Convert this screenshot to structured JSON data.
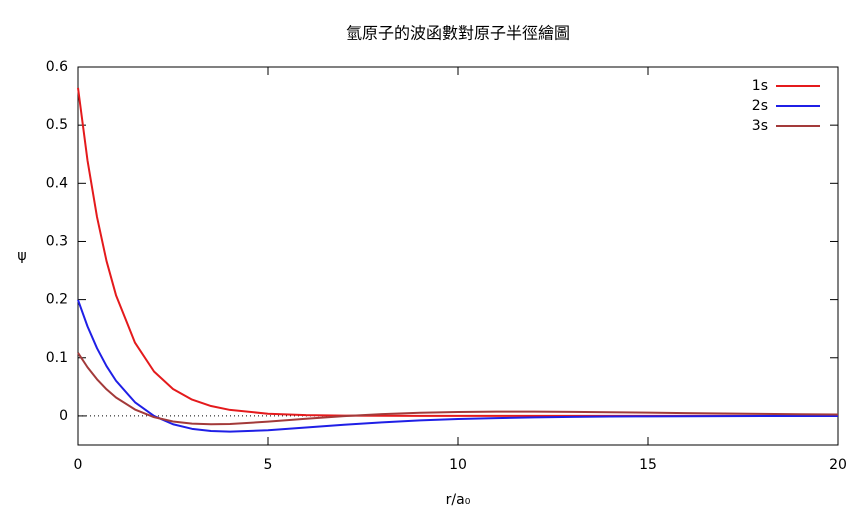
{
  "chart_data": {
    "type": "line",
    "title": "氫原子的波函數對原子半徑繪圖",
    "xlabel": "r/a₀",
    "ylabel": "ψ",
    "x": [
      0,
      0.25,
      0.5,
      0.75,
      1,
      1.5,
      2,
      2.5,
      3,
      3.5,
      4,
      5,
      6,
      7,
      8,
      9,
      10,
      11,
      12,
      13,
      14,
      15,
      16,
      17,
      18,
      19,
      20
    ],
    "series": [
      {
        "name": "1s",
        "color": "#e41a1c",
        "values": [
          0.5642,
          0.4394,
          0.3422,
          0.2665,
          0.2076,
          0.1259,
          0.0764,
          0.0463,
          0.0281,
          0.017,
          0.0103,
          0.0038,
          0.0014,
          0.0005,
          0.0002,
          0.0001,
          0,
          0,
          0,
          0,
          0,
          0,
          0,
          0,
          0,
          0,
          0
        ]
      },
      {
        "name": "2s",
        "color": "#1f1fe6",
        "values": [
          0.1995,
          0.154,
          0.1165,
          0.0857,
          0.0605,
          0.0235,
          0,
          -0.0143,
          -0.0222,
          -0.026,
          -0.027,
          -0.0246,
          -0.0199,
          -0.0151,
          -0.011,
          -0.0077,
          -0.0054,
          -0.0037,
          -0.0025,
          -0.0016,
          -0.0011,
          -0.0007,
          -0.0005,
          -0.0003,
          -0.0002,
          -0.0001,
          -0.0001
        ]
      },
      {
        "name": "3s",
        "color": "#a33a3a",
        "values": [
          0.1086,
          0.0837,
          0.063,
          0.0458,
          0.0317,
          0.011,
          -0.0021,
          -0.0096,
          -0.0133,
          -0.0144,
          -0.0138,
          -0.0099,
          -0.0049,
          -0.0004,
          0.0031,
          0.0054,
          0.0067,
          0.0073,
          0.0073,
          0.0069,
          0.0063,
          0.0056,
          0.0049,
          0.0042,
          0.0035,
          0.0029,
          0.0024
        ]
      }
    ],
    "xlim": [
      0,
      20
    ],
    "xticks": [
      0,
      5,
      10,
      15,
      20
    ],
    "ylim": [
      -0.05,
      0.6
    ],
    "yticks": [
      0,
      0.1,
      0.2,
      0.3,
      0.4,
      0.5,
      0.6
    ],
    "zeroaxis": true,
    "legend": "top-right",
    "grid": false
  }
}
